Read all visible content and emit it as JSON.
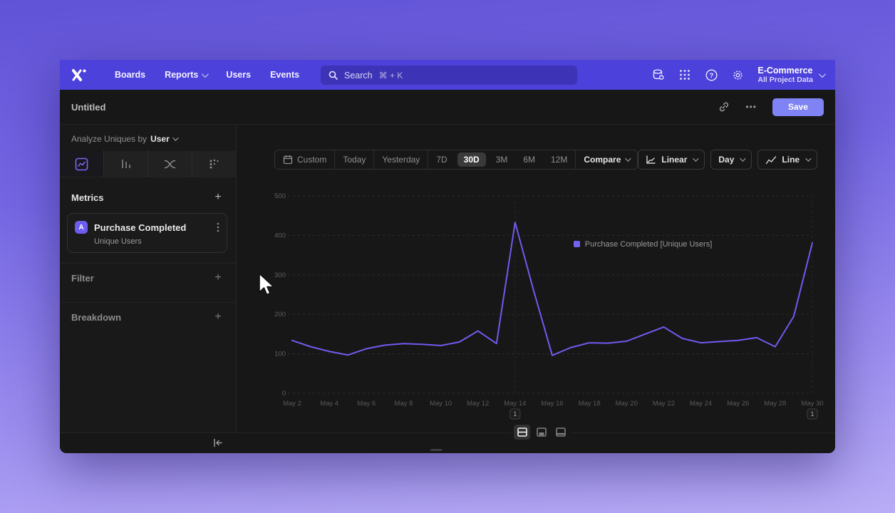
{
  "colors": {
    "brand_purple": "#4c41da",
    "accent": "#6f5bef",
    "save_button": "#7f83f4",
    "window_bg": "#171717"
  },
  "nav": {
    "items": [
      "Boards",
      "Reports",
      "Users",
      "Events"
    ],
    "search": {
      "placeholder": "Search",
      "shortcut": "⌘ + K"
    },
    "project": {
      "name": "E-Commerce",
      "scope": "All Project Data"
    }
  },
  "titlebar": {
    "title": "Untitled",
    "save_label": "Save",
    "more_label": "•••"
  },
  "sidebar": {
    "analyze": {
      "prefix": "Analyze Uniques by",
      "entity": "User"
    },
    "metrics": {
      "header": "Metrics",
      "add": "+"
    },
    "metric_card": {
      "badge": "A",
      "event": "Purchase Completed",
      "measure": "Unique Users"
    },
    "filter": {
      "header": "Filter",
      "add": "+"
    },
    "breakdown": {
      "header": "Breakdown",
      "add": "+"
    }
  },
  "toolbar": {
    "ranges": [
      "Custom",
      "Today",
      "Yesterday",
      "7D",
      "30D",
      "3M",
      "6M",
      "12M"
    ],
    "selected_range": "30D",
    "compare_label": "Compare",
    "scale_label": "Linear",
    "interval_label": "Day",
    "chart_type_label": "Line"
  },
  "chart_data": {
    "type": "line",
    "legend": [
      "Purchase Completed [Unique Users]"
    ],
    "series_name": "Purchase Completed (Unique Users)",
    "series_color": "#6f5bef",
    "ylim": [
      0,
      500
    ],
    "y_ticks": [
      0,
      100,
      200,
      300,
      400,
      500
    ],
    "x": [
      "May 2",
      "May 3",
      "May 4",
      "May 5",
      "May 6",
      "May 7",
      "May 8",
      "May 9",
      "May 10",
      "May 11",
      "May 12",
      "May 13",
      "May 14",
      "May 15",
      "May 16",
      "May 17",
      "May 18",
      "May 19",
      "May 20",
      "May 21",
      "May 22",
      "May 23",
      "May 24",
      "May 25",
      "May 26",
      "May 27",
      "May 28",
      "May 29",
      "May 30"
    ],
    "values": [
      134,
      118,
      106,
      97,
      113,
      122,
      126,
      124,
      121,
      130,
      158,
      126,
      433,
      260,
      96,
      116,
      128,
      127,
      132,
      150,
      168,
      139,
      128,
      131,
      134,
      141,
      118,
      195,
      381
    ],
    "x_tick_labels": [
      "May 2",
      "May 4",
      "May 6",
      "May 8",
      "May 10",
      "May 12",
      "May 14",
      "May 16",
      "May 18",
      "May 20",
      "May 22",
      "May 24",
      "May 26",
      "May 28",
      "May 30"
    ],
    "annotations": [
      {
        "label": "1",
        "x": "May 14"
      },
      {
        "label": "1",
        "x": "May 30"
      }
    ],
    "grid": "dashed-horizontal"
  }
}
